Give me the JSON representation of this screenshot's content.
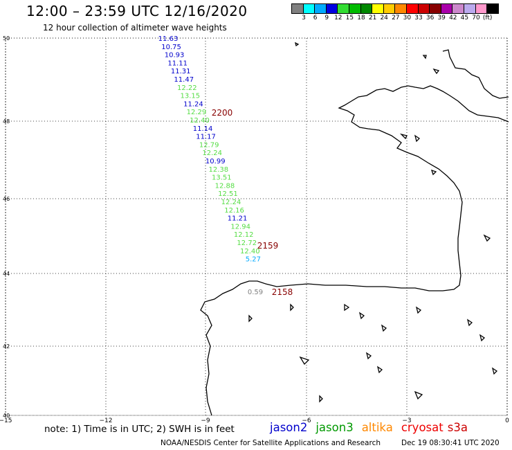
{
  "header": {
    "title": "12:00 – 23:59 UTC 12/16/2020",
    "subtitle": "12 hour collection of altimeter wave heights"
  },
  "color_scale": {
    "colors": [
      "#808080",
      "#00ffff",
      "#00aaff",
      "#0000e0",
      "#33dd33",
      "#00bb00",
      "#008800",
      "#ffff00",
      "#ffcc00",
      "#ff8800",
      "#ff0000",
      "#cc0000",
      "#880000",
      "#aa00aa",
      "#cc88cc",
      "#bbaaee",
      "#ff99cc",
      "#000000"
    ],
    "labels": [
      "3",
      "6",
      "9",
      "12",
      "15",
      "18",
      "21",
      "24",
      "27",
      "30",
      "33",
      "36",
      "39",
      "42",
      "45",
      "70",
      "(ft)"
    ]
  },
  "axes": {
    "lat_labels": [
      "50",
      "48",
      "46",
      "44",
      "42",
      "40"
    ],
    "lon_labels": [
      "−15",
      "−12",
      "−9",
      "−6",
      "−3",
      "0"
    ]
  },
  "wave_heights": [
    {
      "value": "11.63",
      "color": "#0000cc"
    },
    {
      "value": "10.75",
      "color": "#0000cc"
    },
    {
      "value": "10.93",
      "color": "#0000cc"
    },
    {
      "value": "11.11",
      "color": "#0000cc"
    },
    {
      "value": "11.31",
      "color": "#0000cc"
    },
    {
      "value": "11.47",
      "color": "#0000cc"
    },
    {
      "value": "12.22",
      "color": "#55dd44"
    },
    {
      "value": "13.15",
      "color": "#55dd44"
    },
    {
      "value": "11.24",
      "color": "#0000cc"
    },
    {
      "value": "12.29",
      "color": "#55dd44"
    },
    {
      "value": "12.40",
      "color": "#55dd44"
    },
    {
      "value": "11.14",
      "color": "#0000cc"
    },
    {
      "value": "11.17",
      "color": "#0000cc"
    },
    {
      "value": "12.79",
      "color": "#55dd44"
    },
    {
      "value": "12.24",
      "color": "#55dd44"
    },
    {
      "value": "10.99",
      "color": "#0000cc"
    },
    {
      "value": "12.38",
      "color": "#55dd44"
    },
    {
      "value": "13.51",
      "color": "#55dd44"
    },
    {
      "value": "12.88",
      "color": "#55dd44"
    },
    {
      "value": "12.51",
      "color": "#55dd44"
    },
    {
      "value": "12.24",
      "color": "#55dd44"
    },
    {
      "value": "12.16",
      "color": "#55dd44"
    },
    {
      "value": "11.21",
      "color": "#0000cc"
    },
    {
      "value": "12.94",
      "color": "#55dd44"
    },
    {
      "value": "12.12",
      "color": "#55dd44"
    },
    {
      "value": "12.72",
      "color": "#55dd44"
    },
    {
      "value": "12.40",
      "color": "#55dd44"
    },
    {
      "value": "5.27",
      "color": "#00aaff"
    },
    {
      "value": "0.59",
      "color": "#808080"
    }
  ],
  "time_labels": [
    {
      "text": "2200",
      "color": "#880000"
    },
    {
      "text": "2159",
      "color": "#880000"
    },
    {
      "text": "2158",
      "color": "#880000"
    }
  ],
  "footer": {
    "note": "note: 1) Time is in UTC; 2) SWH is in feet",
    "satellites": [
      {
        "name": "jason2",
        "color": "#0000cc"
      },
      {
        "name": "jason3",
        "color": "#009900"
      },
      {
        "name": "altika",
        "color": "#ff8800"
      },
      {
        "name": "cryosat",
        "color": "#ee0000"
      },
      {
        "name": "s3a",
        "color": "#cc0000"
      }
    ],
    "credit": "NOAA/NESDIS Center for Satellite Applications and Research",
    "timestamp": "Dec 19 08:30:41 UTC 2020"
  }
}
